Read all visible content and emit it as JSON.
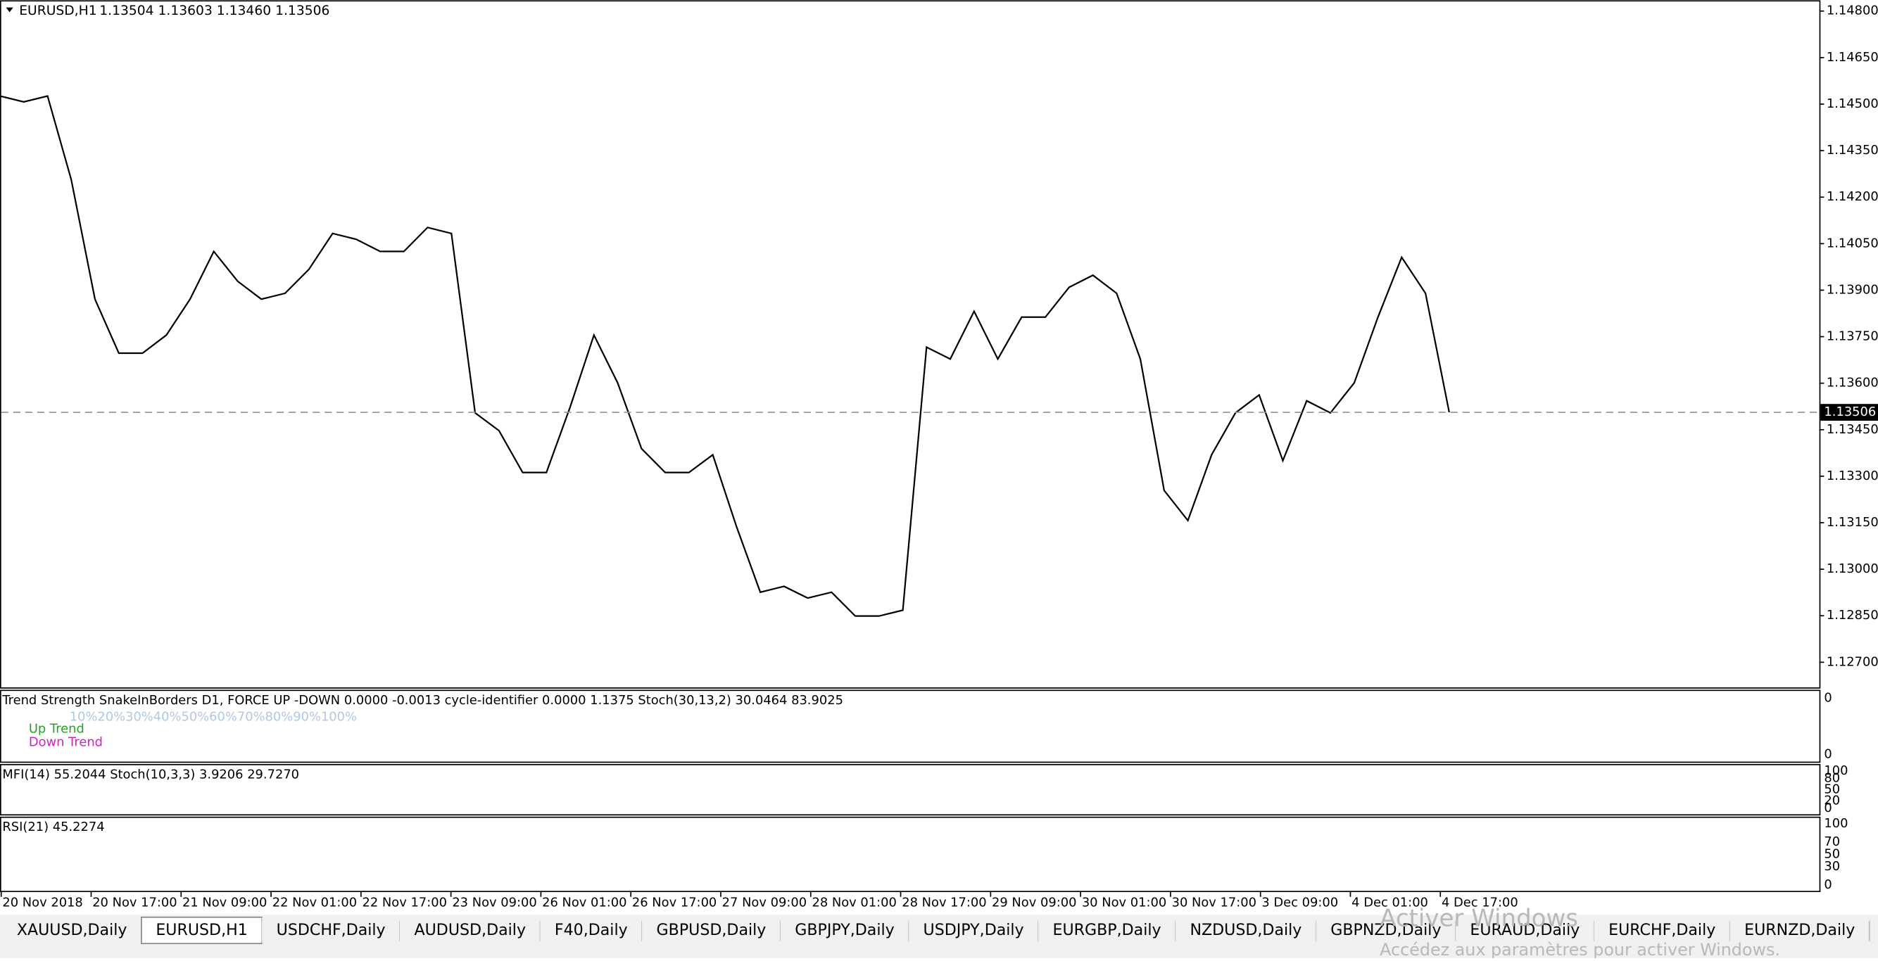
{
  "header": {
    "symbol": "EURUSD,H1",
    "quote": "1.13504 1.13603 1.13460 1.13506"
  },
  "chart_data": {
    "type": "line",
    "color": "#000000",
    "values": [
      1.14526,
      1.14507,
      1.14526,
      1.14256,
      1.13871,
      1.13697,
      1.13697,
      1.13755,
      1.13871,
      1.14025,
      1.13929,
      1.13871,
      1.1389,
      1.13967,
      1.14083,
      1.14064,
      1.14025,
      1.14025,
      1.14102,
      1.14083,
      1.13504,
      1.13447,
      1.13312,
      1.13312,
      1.13524,
      1.13755,
      1.13601,
      1.13389,
      1.13312,
      1.13312,
      1.13369,
      1.13138,
      1.12926,
      1.12945,
      1.12907,
      1.12926,
      1.12849,
      1.12849,
      1.12868,
      1.13716,
      1.13678,
      1.13832,
      1.13678,
      1.13813,
      1.13813,
      1.13909,
      1.13948,
      1.1389,
      1.13678,
      1.13254,
      1.13157,
      1.13369,
      1.13504,
      1.13562,
      1.1335,
      1.13543,
      1.13504,
      1.13601,
      1.13813,
      1.14006,
      1.1389,
      1.13506
    ],
    "time_labels": [
      "20 Nov 2018",
      "20 Nov 17:00",
      "21 Nov 09:00",
      "22 Nov 01:00",
      "22 Nov 17:00",
      "23 Nov 09:00",
      "26 Nov 01:00",
      "26 Nov 17:00",
      "27 Nov 09:00",
      "28 Nov 01:00",
      "28 Nov 17:00",
      "29 Nov 09:00",
      "30 Nov 01:00",
      "30 Nov 17:00",
      "3 Dec 09:00",
      "4 Dec 01:00",
      "4 Dec 17:00"
    ],
    "ylim": [
      1.12619,
      1.14831
    ],
    "yticks": [
      {
        "value": 1.148,
        "label": "1.14800"
      },
      {
        "value": 1.1465,
        "label": "1.14650"
      },
      {
        "value": 1.145,
        "label": "1.14500"
      },
      {
        "value": 1.1435,
        "label": "1.14350"
      },
      {
        "value": 1.142,
        "label": "1.14200"
      },
      {
        "value": 1.1405,
        "label": "1.14050"
      },
      {
        "value": 1.139,
        "label": "1.13900"
      },
      {
        "value": 1.1375,
        "label": "1.13750"
      },
      {
        "value": 1.136,
        "label": "1.13600"
      },
      {
        "value": 1.1345,
        "label": "1.13450"
      },
      {
        "value": 1.133,
        "label": "1.13300"
      },
      {
        "value": 1.1315,
        "label": "1.13150"
      },
      {
        "value": 1.13,
        "label": "1.13000"
      },
      {
        "value": 1.1285,
        "label": "1.12850"
      },
      {
        "value": 1.127,
        "label": "1.12700"
      }
    ],
    "current_price": 1.13506
  },
  "indicators": [
    {
      "title": "Trend Strength  SnakeInBorders D1, FORCE UP -DOWN  0.0000 -0.0013  cycle-identifier 0.0000 1.1375  Stoch(30,13,2) 30.0464 83.9025",
      "ticks": [
        0,
        0
      ],
      "scale_row": "10%20%30%40%50%60%70%80%90%100%",
      "up": "Up Trend",
      "down": "Down Trend"
    },
    {
      "title": "MFI(14) 55.2044  Stoch(10,3,3) 3.9206 29.7270",
      "ticks": [
        100,
        80,
        50,
        20,
        0
      ],
      "ylim": [
        0,
        100
      ]
    },
    {
      "title": "RSI(21) 45.2274",
      "ticks": [
        100,
        70,
        50,
        30,
        0
      ],
      "ylim": [
        0,
        100
      ]
    }
  ],
  "tabs": [
    "XAUUSD,Daily",
    "EURUSD,H1",
    "USDCHF,Daily",
    "AUDUSD,Daily",
    "F40,Daily",
    "GBPUSD,Daily",
    "GBPJPY,Daily",
    "USDJPY,Daily",
    "EURGBP,Daily",
    "NZDUSD,Daily",
    "GBPNZD,Daily",
    "EURAUD,Daily",
    "EURCHF,Daily",
    "EURNZD,Daily"
  ],
  "active_tab": 1,
  "watermark": {
    "title": "Activer Windows",
    "subtitle": "Accédez aux paramètres pour activer Windows."
  }
}
